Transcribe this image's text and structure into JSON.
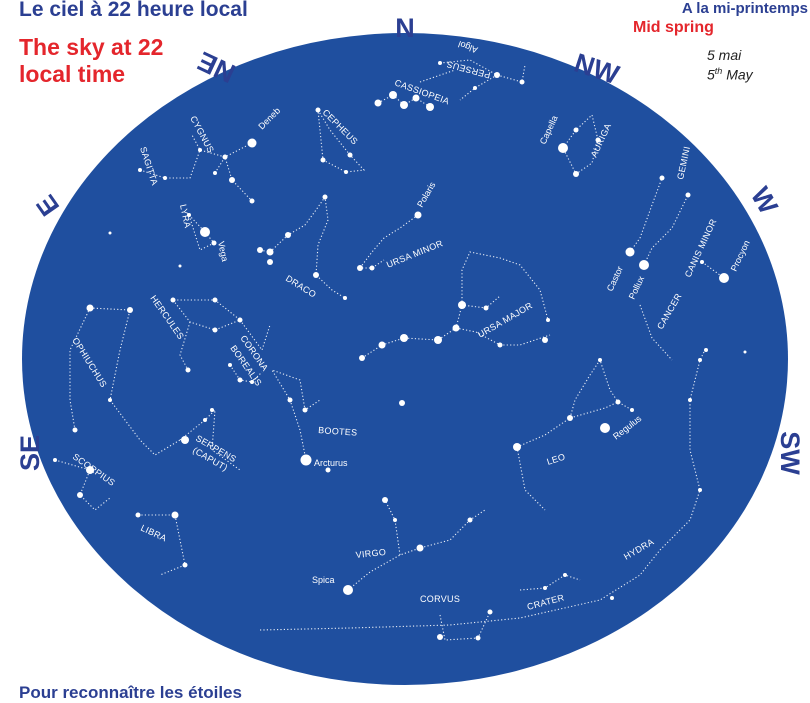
{
  "header": {
    "title_fr": "Le ciel à 22 heure local",
    "title_en": "The sky at 22 local time",
    "season_fr": "A la mi-printemps",
    "season_en": "Mid spring",
    "date_fr": "5 mai",
    "date_en_num": "5",
    "date_en_sup": "th",
    "date_en_month": "May"
  },
  "footer": {
    "text": "Pour reconnaître les étoiles"
  },
  "colors": {
    "sky": "#1f4f9f",
    "title_blue": "#2b3f92",
    "title_red": "#e4262c",
    "star": "#ffffff"
  },
  "directions": {
    "n": "N",
    "ne": "NE",
    "nw": "NW",
    "e": "E",
    "w": "W",
    "se": "SE",
    "sw": "SW"
  },
  "constellations": {
    "cassiopeia": "CASSIOPEIA",
    "perseus": "PERSEUS",
    "cepheus": "CEPHEUS",
    "cygnus": "CYGNUS",
    "sagitta": "SAGITTA",
    "lyra": "LYRA",
    "draco": "DRACO",
    "ursa_minor": "URSA MINOR",
    "ursa_major": "URSA MAJOR",
    "auriga": "AURIGA",
    "gemini": "GEMINI",
    "canis_minor": "CANIS MINOR",
    "cancer": "CANCER",
    "hercules": "HERCULES",
    "corona": "CORONA",
    "borealis": "BOREALIS",
    "ophiuchus": "OPHIUCHUS",
    "serpens": "SERPENS",
    "caput": "(CAPUT)",
    "scorpius": "SCORPIUS",
    "libra": "LIBRA",
    "bootes": "BOOTES",
    "leo": "LEO",
    "virgo": "VIRGO",
    "corvus": "CORVUS",
    "crater": "CRATER",
    "hydra": "HYDRA"
  },
  "stars": {
    "algol": "Algol",
    "capella": "Capella",
    "deneb": "Deneb",
    "vega": "Vega",
    "polaris": "Polaris",
    "castor": "Castor",
    "pollux": "Pollux",
    "procyon": "Procyon",
    "regulus": "Regulus",
    "arcturus": "Arcturus",
    "spica": "Spica"
  }
}
